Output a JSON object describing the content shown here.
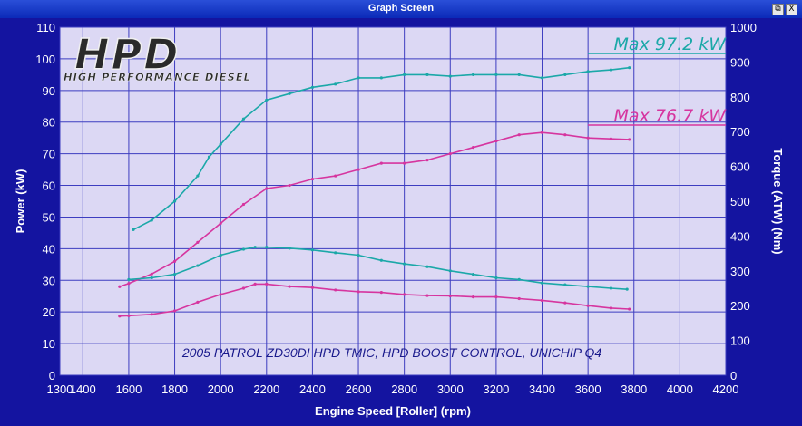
{
  "window": {
    "title": "Graph Screen",
    "restore_glyph": "⧉",
    "close_glyph": "X"
  },
  "logo": {
    "text": "HPD",
    "tagline": "HIGH PERFORMANCE DIESEL"
  },
  "colors": {
    "plot_bg": "#dcd8f4",
    "frame_bg": "#1414a0",
    "grid": "#3d3dc0",
    "kw_series": "#1ba8a8",
    "nm_series": "#d6359f",
    "axis_text": "#ffffff",
    "annotation_text": "#1a1a8c"
  },
  "chart_data": {
    "type": "line",
    "xlabel": "Engine Speed [Roller] (rpm)",
    "ylabel": "Power (kW)",
    "y2label": "Torque (ATW) (Nm)",
    "xlim": [
      1300,
      4200
    ],
    "ylim": [
      0,
      110
    ],
    "y2lim": [
      0,
      1000
    ],
    "x_ticks": [
      1300,
      1400,
      1600,
      1800,
      2000,
      2200,
      2400,
      2600,
      2800,
      3000,
      3200,
      3400,
      3600,
      3800,
      4000,
      4200
    ],
    "y_ticks": [
      0,
      10,
      20,
      30,
      40,
      50,
      60,
      70,
      80,
      90,
      100,
      110
    ],
    "y2_ticks": [
      0,
      100,
      200,
      300,
      400,
      500,
      600,
      700,
      800,
      900,
      1000
    ],
    "grid": true,
    "annotations": {
      "max_1": "Max 97.2 kW",
      "max_2": "Max 76.7 kW",
      "caption": "2005 PATROL ZD30DI HPD TMIC, HPD BOOST CONTROL, UNICHIP Q4"
    },
    "series": [
      {
        "axis": "left",
        "color": "#1ba8a8",
        "x": [
          1620,
          1700,
          1800,
          1900,
          1950,
          2000,
          2100,
          2200,
          2300,
          2400,
          2500,
          2600,
          2700,
          2800,
          2900,
          3000,
          3100,
          3200,
          3300,
          3400,
          3500,
          3600,
          3700,
          3780
        ],
        "y": [
          46,
          49,
          55,
          63,
          69,
          73,
          81,
          87,
          89,
          91,
          92,
          94,
          94,
          95,
          95,
          94.5,
          95,
          95,
          95,
          94,
          95,
          96,
          96.5,
          97.2
        ]
      },
      {
        "axis": "left",
        "color": "#d6359f",
        "x": [
          1560,
          1600,
          1700,
          1800,
          1900,
          2000,
          2100,
          2200,
          2300,
          2400,
          2500,
          2600,
          2700,
          2800,
          2900,
          3000,
          3100,
          3200,
          3300,
          3400,
          3500,
          3600,
          3700,
          3780
        ],
        "y": [
          28,
          29,
          32,
          36,
          42,
          48,
          54,
          59,
          60,
          62,
          63,
          65,
          67,
          67,
          68,
          70,
          72,
          74,
          76,
          76.7,
          76,
          75,
          74.7,
          74.5
        ]
      },
      {
        "axis": "right",
        "color": "#1ba8a8",
        "x": [
          1600,
          1700,
          1800,
          1900,
          2000,
          2100,
          2150,
          2200,
          2300,
          2400,
          2500,
          2600,
          2700,
          2800,
          2900,
          3000,
          3100,
          3200,
          3300,
          3400,
          3500,
          3600,
          3700,
          3770
        ],
        "y": [
          275,
          280,
          290,
          315,
          345,
          362,
          368,
          368,
          365,
          360,
          352,
          345,
          330,
          320,
          312,
          300,
          290,
          280,
          275,
          265,
          260,
          255,
          250,
          247
        ]
      },
      {
        "axis": "right",
        "color": "#d6359f",
        "x": [
          1560,
          1600,
          1700,
          1800,
          1900,
          2000,
          2100,
          2150,
          2200,
          2300,
          2400,
          2500,
          2600,
          2700,
          2800,
          2900,
          3000,
          3100,
          3200,
          3300,
          3400,
          3500,
          3600,
          3700,
          3780
        ],
        "y": [
          170,
          171,
          175,
          185,
          210,
          232,
          250,
          262,
          262,
          255,
          252,
          245,
          240,
          238,
          232,
          229,
          228,
          225,
          225,
          220,
          215,
          208,
          200,
          193,
          190
        ]
      }
    ]
  }
}
